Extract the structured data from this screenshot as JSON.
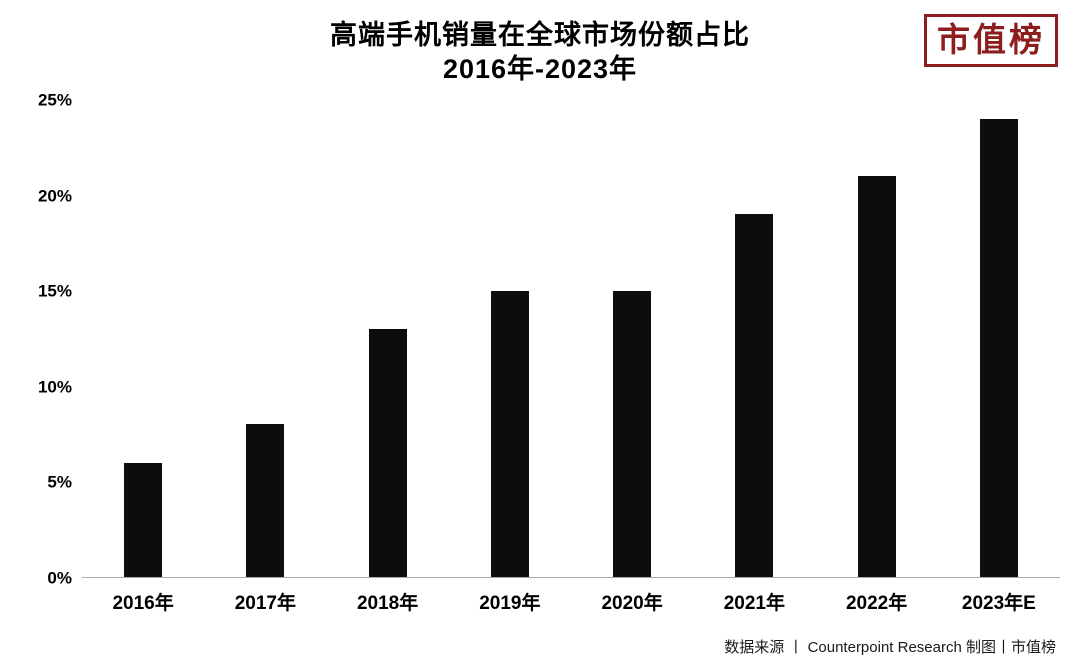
{
  "title": {
    "line1": "高端手机销量在全球市场份额占比",
    "line2": "2016年-2023年"
  },
  "logo": {
    "text": "市值榜",
    "color": "#8e1d1d"
  },
  "footer": {
    "text": "数据来源 丨 Counterpoint Research 制图丨市值榜"
  },
  "chart_data": {
    "type": "bar",
    "title": "高端手机销量在全球市场份额占比 2016年-2023年",
    "categories": [
      "2016年",
      "2017年",
      "2018年",
      "2019年",
      "2020年",
      "2021年",
      "2022年",
      "2023年E"
    ],
    "values": [
      6,
      8,
      13,
      15,
      15,
      19,
      21,
      24
    ],
    "xlabel": "",
    "ylabel": "",
    "ylim": [
      0,
      25
    ],
    "yticks": [
      0,
      5,
      10,
      15,
      20,
      25
    ],
    "ytick_labels": [
      "0%",
      "5%",
      "10%",
      "15%",
      "20%",
      "25%"
    ],
    "bar_color": "#0d0d0d",
    "grid": false,
    "legend_position": "none"
  }
}
